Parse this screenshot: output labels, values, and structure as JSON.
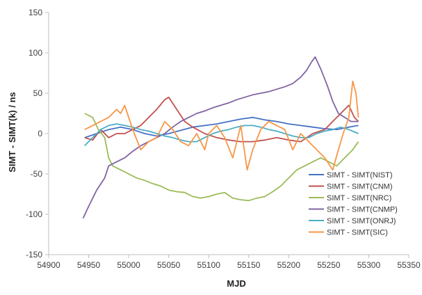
{
  "chart_data": {
    "type": "line",
    "title": "",
    "xlabel": "MJD",
    "ylabel": "SIMT - SIMT(k) / ns",
    "xlim": [
      54900,
      55350
    ],
    "ylim": [
      -150,
      150
    ],
    "xticks": [
      54900,
      54950,
      55000,
      55050,
      55100,
      55150,
      55200,
      55250,
      55300,
      55350
    ],
    "yticks": [
      -150,
      -100,
      -50,
      0,
      50,
      100,
      150
    ],
    "xtick_labels": [
      "54900",
      "54950",
      "55000",
      "55050",
      "55100",
      "55150",
      "55200",
      "55250",
      "55300",
      "55350"
    ],
    "ytick_labels": [
      "-150",
      "-100",
      "-50",
      "0",
      "50",
      "100",
      "150"
    ],
    "grid": false,
    "legend_position": "bottom-right",
    "series": [
      {
        "name": "SIMT - SIMT(NIST)",
        "color": "#4472C4",
        "x": [
          54945,
          54960,
          54975,
          54990,
          55005,
          55020,
          55035,
          55050,
          55065,
          55080,
          55095,
          55110,
          55125,
          55140,
          55155,
          55170,
          55185,
          55200,
          55215,
          55230,
          55245,
          55260,
          55275,
          55287
        ],
        "y": [
          -5,
          0,
          5,
          8,
          5,
          0,
          -3,
          0,
          4,
          8,
          10,
          12,
          15,
          18,
          20,
          17,
          15,
          12,
          10,
          8,
          6,
          5,
          8,
          10
        ]
      },
      {
        "name": "SIMT - SIMT(CNM)",
        "color": "#C0504D",
        "x": [
          54945,
          54955,
          54965,
          54975,
          54985,
          54995,
          55005,
          55015,
          55025,
          55035,
          55045,
          55050,
          55060,
          55070,
          55080,
          55095,
          55110,
          55125,
          55140,
          55155,
          55170,
          55185,
          55200,
          55215,
          55230,
          55245,
          55255,
          55265,
          55275,
          55282,
          55287
        ],
        "y": [
          -5,
          -8,
          5,
          -5,
          0,
          0,
          5,
          10,
          20,
          30,
          42,
          45,
          30,
          15,
          8,
          0,
          -5,
          -8,
          -10,
          -10,
          -8,
          -5,
          -8,
          -10,
          0,
          5,
          15,
          25,
          35,
          20,
          15
        ]
      },
      {
        "name": "SIMT - SIMT(NRC)",
        "color": "#9BBB59",
        "x": [
          54945,
          54955,
          54962,
          54970,
          54975,
          54980,
          54990,
          55000,
          55010,
          55020,
          55030,
          55040,
          55050,
          55060,
          55070,
          55080,
          55090,
          55100,
          55110,
          55120,
          55130,
          55140,
          55150,
          55160,
          55170,
          55180,
          55190,
          55200,
          55210,
          55220,
          55230,
          55240,
          55250,
          55260,
          55270,
          55280,
          55287
        ],
        "y": [
          25,
          20,
          5,
          -5,
          -30,
          -40,
          -45,
          -50,
          -55,
          -58,
          -62,
          -65,
          -70,
          -72,
          -73,
          -78,
          -80,
          -78,
          -75,
          -73,
          -80,
          -82,
          -83,
          -80,
          -78,
          -72,
          -65,
          -55,
          -45,
          -40,
          -35,
          -30,
          -35,
          -40,
          -30,
          -20,
          -10
        ]
      },
      {
        "name": "SIMT - SIMT(CNMP)",
        "color": "#8064A2",
        "x": [
          54943,
          54950,
          54960,
          54970,
          54975,
          54985,
          54995,
          55005,
          55015,
          55025,
          55035,
          55045,
          55055,
          55065,
          55075,
          55085,
          55095,
          55105,
          55115,
          55125,
          55135,
          55145,
          55155,
          55165,
          55175,
          55185,
          55195,
          55205,
          55215,
          55222,
          55228,
          55233,
          55240,
          55248,
          55255,
          55262,
          55270,
          55278,
          55287
        ],
        "y": [
          -105,
          -90,
          -70,
          -55,
          -40,
          -35,
          -30,
          -22,
          -15,
          -10,
          -5,
          0,
          8,
          15,
          20,
          25,
          28,
          32,
          35,
          38,
          42,
          45,
          48,
          50,
          52,
          55,
          58,
          62,
          70,
          78,
          88,
          95,
          80,
          60,
          40,
          25,
          20,
          15,
          15
        ]
      },
      {
        "name": "SIMT - SIMT(ONRJ)",
        "color": "#4BACC6",
        "x": [
          54945,
          54955,
          54965,
          54975,
          54985,
          54995,
          55005,
          55015,
          55025,
          55035,
          55045,
          55055,
          55065,
          55075,
          55085,
          55095,
          55105,
          55115,
          55125,
          55135,
          55145,
          55155,
          55165,
          55175,
          55185,
          55195,
          55205,
          55215,
          55225,
          55235,
          55245,
          55255,
          55265,
          55275,
          55287
        ],
        "y": [
          -15,
          -5,
          5,
          10,
          12,
          10,
          8,
          5,
          3,
          0,
          -3,
          -5,
          -8,
          -10,
          -10,
          -5,
          0,
          3,
          5,
          8,
          10,
          10,
          8,
          5,
          3,
          0,
          -3,
          -5,
          -5,
          0,
          3,
          5,
          8,
          5,
          0
        ]
      },
      {
        "name": "SIMT - SIMT(SIC)",
        "color": "#F79646",
        "x": [
          54945,
          54955,
          54965,
          54975,
          54985,
          54990,
          54995,
          55000,
          55005,
          55015,
          55025,
          55035,
          55045,
          55055,
          55065,
          55075,
          55085,
          55095,
          55100,
          55110,
          55120,
          55130,
          55140,
          55148,
          55155,
          55165,
          55175,
          55185,
          55195,
          55205,
          55215,
          55225,
          55235,
          55245,
          55255,
          55262,
          55268,
          55275,
          55280,
          55284,
          55287
        ],
        "y": [
          5,
          10,
          15,
          20,
          30,
          25,
          35,
          20,
          5,
          -20,
          -10,
          -5,
          15,
          5,
          -10,
          -15,
          0,
          -20,
          0,
          10,
          -5,
          -30,
          10,
          -45,
          -20,
          5,
          15,
          10,
          5,
          -20,
          0,
          -10,
          -20,
          -30,
          -45,
          -20,
          0,
          20,
          65,
          50,
          20
        ]
      }
    ]
  }
}
